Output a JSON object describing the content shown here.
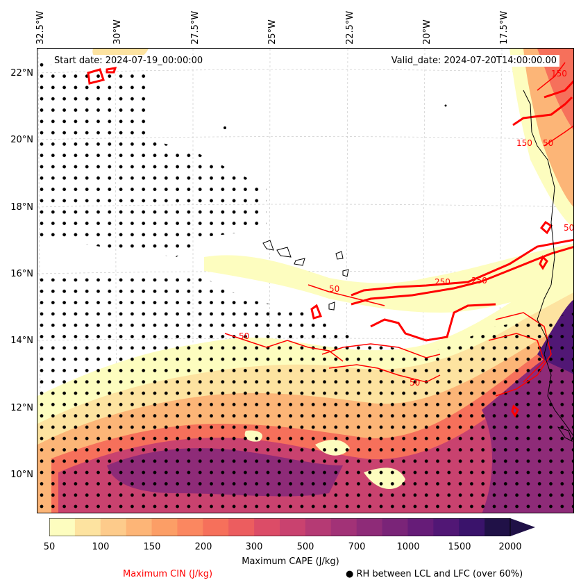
{
  "map": {
    "start_date": "Start date: 2024-07-19_00:00:00",
    "valid_date": "Valid_date: 2024-07-20T14:00:00.00",
    "longitude_labels": [
      "32.5°W",
      "30°W",
      "27.5°W",
      "25°W",
      "22.5°W",
      "20°W",
      "17.5°W"
    ],
    "latitude_labels": [
      "22°N",
      "20°N",
      "18°N",
      "16°N",
      "14°N",
      "12°N",
      "10°N"
    ],
    "contour_labels": [
      "50",
      "250",
      "50",
      "50",
      "250",
      "150",
      "50",
      "50",
      "150"
    ],
    "colormap": "magma_r",
    "cin_contour_color": "#ff0000"
  },
  "colorbar": {
    "label": "Maximum CAPE (J/kg)",
    "tick_labels": [
      "50",
      "100",
      "150",
      "200",
      "300",
      "500",
      "700",
      "1000",
      "1500",
      "2000"
    ],
    "levels": [
      50,
      75,
      100,
      125,
      150,
      175,
      200,
      250,
      300,
      400,
      500,
      600,
      700,
      850,
      1000,
      1250,
      1500,
      1750,
      2000
    ],
    "colors": [
      "#fdfdbf",
      "#fde3a0",
      "#fdcb8b",
      "#fdb577",
      "#fc9e66",
      "#fb8760",
      "#f6705b",
      "#ec5d5f",
      "#dc4c67",
      "#c9426f",
      "#b53a74",
      "#a23277",
      "#8e2b78",
      "#7a2478",
      "#661c78",
      "#511775",
      "#3a136b",
      "#201147"
    ],
    "extend": "max"
  },
  "legend": {
    "cin_label": "Maximum CIN (J/kg)",
    "rh_label": "● RH between LCL and LFC (over 60%)"
  }
}
